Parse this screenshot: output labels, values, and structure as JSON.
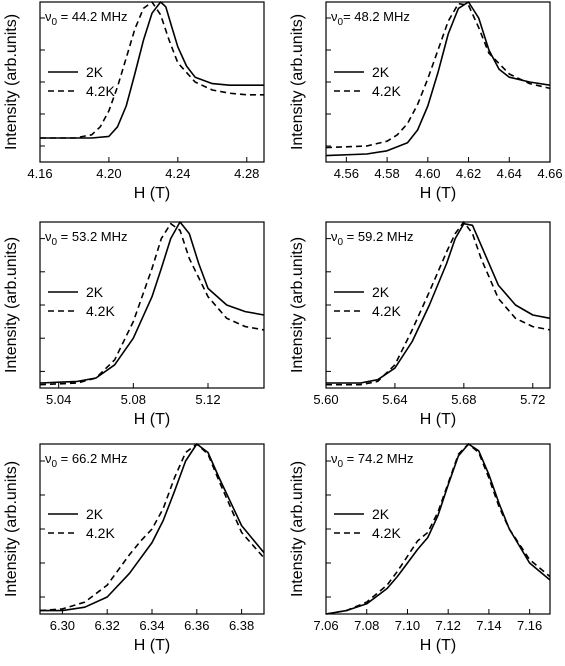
{
  "chart_data": [
    {
      "type": "line",
      "annotation": {
        "prefix": "ν",
        "sub": "0",
        "text": " = 44.2 MHz"
      },
      "xlabel": "H (T)",
      "ylabel": "Intensity (arb.units)",
      "xlim": [
        4.16,
        4.29
      ],
      "ylim": [
        0,
        1.0
      ],
      "xticks": [
        4.16,
        4.2,
        4.24,
        4.28
      ],
      "xtick_labels": [
        "4.16",
        "4.20",
        "4.24",
        "4.28"
      ],
      "yticks": [
        0.1,
        0.3,
        0.5,
        0.7,
        0.9
      ],
      "legend": [
        "2K",
        "4.2K"
      ],
      "series": [
        {
          "name": "2K",
          "style": "solid",
          "x": [
            4.16,
            4.19,
            4.2,
            4.205,
            4.21,
            4.215,
            4.22,
            4.225,
            4.23,
            4.233,
            4.236,
            4.24,
            4.245,
            4.25,
            4.26,
            4.27,
            4.28,
            4.29
          ],
          "y": [
            0.15,
            0.15,
            0.16,
            0.22,
            0.35,
            0.55,
            0.76,
            0.93,
            1.0,
            0.97,
            0.86,
            0.72,
            0.6,
            0.53,
            0.49,
            0.48,
            0.48,
            0.48
          ]
        },
        {
          "name": "4.2K",
          "style": "dashed",
          "x": [
            4.16,
            4.18,
            4.19,
            4.195,
            4.2,
            4.205,
            4.21,
            4.215,
            4.22,
            4.225,
            4.23,
            4.235,
            4.24,
            4.25,
            4.26,
            4.27,
            4.28,
            4.29
          ],
          "y": [
            0.15,
            0.15,
            0.17,
            0.22,
            0.32,
            0.47,
            0.65,
            0.83,
            0.96,
            1.0,
            0.92,
            0.76,
            0.62,
            0.5,
            0.45,
            0.43,
            0.42,
            0.42
          ]
        }
      ]
    },
    {
      "type": "line",
      "annotation": {
        "prefix": "ν",
        "sub": "0",
        "text": "= 48.2 MHz"
      },
      "xlabel": "H (T)",
      "ylabel": "Intensity (arb.units)",
      "xlim": [
        4.55,
        4.66
      ],
      "ylim": [
        0,
        1.0
      ],
      "xticks": [
        4.56,
        4.58,
        4.6,
        4.62,
        4.64,
        4.66
      ],
      "xtick_labels": [
        "4.56",
        "4.58",
        "4.60",
        "4.62",
        "4.64",
        "4.66"
      ],
      "yticks": [
        0.1,
        0.3,
        0.5,
        0.7,
        0.9
      ],
      "legend": [
        "2K",
        "4.2K"
      ],
      "series": [
        {
          "name": "2K",
          "style": "solid",
          "x": [
            4.55,
            4.57,
            4.58,
            4.59,
            4.595,
            4.6,
            4.605,
            4.61,
            4.615,
            4.62,
            4.625,
            4.63,
            4.635,
            4.64,
            4.65,
            4.66
          ],
          "y": [
            0.04,
            0.05,
            0.07,
            0.12,
            0.2,
            0.35,
            0.56,
            0.8,
            0.96,
            1.0,
            0.9,
            0.7,
            0.58,
            0.53,
            0.5,
            0.48
          ]
        },
        {
          "name": "4.2K",
          "style": "dashed",
          "x": [
            4.55,
            4.57,
            4.58,
            4.585,
            4.59,
            4.595,
            4.6,
            4.605,
            4.61,
            4.615,
            4.62,
            4.625,
            4.63,
            4.64,
            4.65,
            4.66
          ],
          "y": [
            0.09,
            0.1,
            0.13,
            0.17,
            0.24,
            0.36,
            0.52,
            0.7,
            0.88,
            0.99,
            0.98,
            0.84,
            0.68,
            0.55,
            0.49,
            0.46
          ]
        }
      ]
    },
    {
      "type": "line",
      "annotation": {
        "prefix": "ν",
        "sub": "0",
        "text": " = 53.2 MHz"
      },
      "xlabel": "H (T)",
      "ylabel": "Intensity (arb.units)",
      "xlim": [
        5.03,
        5.15
      ],
      "ylim": [
        0,
        1.0
      ],
      "xticks": [
        5.04,
        5.08,
        5.12
      ],
      "xtick_labels": [
        "5.04",
        "5.08",
        "5.12"
      ],
      "yticks": [
        0.1,
        0.3,
        0.5,
        0.7,
        0.9
      ],
      "legend": [
        "2K",
        "4.2K"
      ],
      "series": [
        {
          "name": "2K",
          "style": "solid",
          "x": [
            5.03,
            5.05,
            5.06,
            5.07,
            5.08,
            5.09,
            5.095,
            5.1,
            5.105,
            5.11,
            5.115,
            5.12,
            5.13,
            5.14,
            5.15
          ],
          "y": [
            0.03,
            0.04,
            0.06,
            0.14,
            0.3,
            0.55,
            0.72,
            0.9,
            1.0,
            0.93,
            0.75,
            0.6,
            0.5,
            0.46,
            0.44
          ]
        },
        {
          "name": "4.2K",
          "style": "dashed",
          "x": [
            5.03,
            5.05,
            5.06,
            5.07,
            5.08,
            5.09,
            5.095,
            5.1,
            5.105,
            5.11,
            5.12,
            5.13,
            5.14,
            5.15
          ],
          "y": [
            0.02,
            0.03,
            0.06,
            0.17,
            0.4,
            0.72,
            0.9,
            0.99,
            0.95,
            0.78,
            0.55,
            0.42,
            0.37,
            0.35
          ]
        }
      ]
    },
    {
      "type": "line",
      "annotation": {
        "prefix": "ν",
        "sub": "0",
        "text": " = 59.2 MHz"
      },
      "xlabel": "H (T)",
      "ylabel": "Intensity (arb.units)",
      "xlim": [
        5.6,
        5.73
      ],
      "ylim": [
        0,
        1.0
      ],
      "xticks": [
        5.6,
        5.64,
        5.68,
        5.72
      ],
      "xtick_labels": [
        "5.60",
        "5.64",
        "5.68",
        "5.72"
      ],
      "yticks": [
        0.1,
        0.3,
        0.5,
        0.7,
        0.9
      ],
      "legend": [
        "2K",
        "4.2K"
      ],
      "series": [
        {
          "name": "2K",
          "style": "solid",
          "x": [
            5.6,
            5.62,
            5.63,
            5.64,
            5.65,
            5.66,
            5.67,
            5.675,
            5.68,
            5.685,
            5.69,
            5.7,
            5.71,
            5.72,
            5.73
          ],
          "y": [
            0.03,
            0.03,
            0.05,
            0.12,
            0.28,
            0.5,
            0.75,
            0.9,
            0.99,
            0.98,
            0.86,
            0.62,
            0.5,
            0.44,
            0.42
          ]
        },
        {
          "name": "4.2K",
          "style": "dashed",
          "x": [
            5.6,
            5.62,
            5.63,
            5.64,
            5.65,
            5.66,
            5.67,
            5.675,
            5.68,
            5.685,
            5.69,
            5.7,
            5.71,
            5.72,
            5.73
          ],
          "y": [
            0.02,
            0.02,
            0.04,
            0.14,
            0.35,
            0.58,
            0.82,
            0.93,
            1.0,
            0.93,
            0.78,
            0.54,
            0.42,
            0.37,
            0.35
          ]
        }
      ]
    },
    {
      "type": "line",
      "annotation": {
        "prefix": "ν",
        "sub": "0",
        "text": " = 66.2 MHz"
      },
      "xlabel": "H (T)",
      "ylabel": "Intensity (arb.units)",
      "xlim": [
        6.29,
        6.39
      ],
      "ylim": [
        0,
        1.0
      ],
      "xticks": [
        6.3,
        6.32,
        6.34,
        6.36,
        6.38
      ],
      "xtick_labels": [
        "6.30",
        "6.32",
        "6.34",
        "6.36",
        "6.38"
      ],
      "yticks": [
        0.1,
        0.3,
        0.5,
        0.7,
        0.9
      ],
      "legend": [
        "2K",
        "4.2K"
      ],
      "series": [
        {
          "name": "2K",
          "style": "solid",
          "x": [
            6.29,
            6.3,
            6.31,
            6.32,
            6.33,
            6.34,
            6.345,
            6.35,
            6.355,
            6.36,
            6.365,
            6.37,
            6.38,
            6.39
          ],
          "y": [
            0.02,
            0.02,
            0.04,
            0.1,
            0.24,
            0.42,
            0.55,
            0.72,
            0.9,
            1.0,
            0.95,
            0.8,
            0.52,
            0.36
          ]
        },
        {
          "name": "4.2K",
          "style": "dashed",
          "x": [
            6.29,
            6.3,
            6.31,
            6.32,
            6.33,
            6.335,
            6.34,
            6.345,
            6.35,
            6.355,
            6.36,
            6.365,
            6.37,
            6.38,
            6.39
          ],
          "y": [
            0.02,
            0.03,
            0.07,
            0.17,
            0.35,
            0.43,
            0.5,
            0.62,
            0.8,
            0.95,
            1.0,
            0.94,
            0.78,
            0.48,
            0.33
          ]
        }
      ]
    },
    {
      "type": "line",
      "annotation": {
        "prefix": "ν",
        "sub": "0",
        "text": " = 74.2 MHz"
      },
      "xlabel": "H (T)",
      "ylabel": "Intensity (arb.units)",
      "xlim": [
        7.06,
        7.17
      ],
      "ylim": [
        0,
        1.0
      ],
      "xticks": [
        7.06,
        7.08,
        7.1,
        7.12,
        7.14,
        7.16
      ],
      "xtick_labels": [
        "7.06",
        "7.08",
        "7.10",
        "7.12",
        "7.14",
        "7.16"
      ],
      "yticks": [
        0.1,
        0.3,
        0.5,
        0.7,
        0.9
      ],
      "legend": [
        "2K",
        "4.2K"
      ],
      "series": [
        {
          "name": "2K",
          "style": "solid",
          "x": [
            7.06,
            7.07,
            7.08,
            7.09,
            7.095,
            7.1,
            7.105,
            7.11,
            7.115,
            7.12,
            7.125,
            7.13,
            7.135,
            7.14,
            7.145,
            7.15,
            7.16,
            7.17
          ],
          "y": [
            0.0,
            0.02,
            0.06,
            0.15,
            0.22,
            0.3,
            0.38,
            0.45,
            0.58,
            0.76,
            0.93,
            1.0,
            0.96,
            0.82,
            0.65,
            0.5,
            0.3,
            0.2
          ]
        },
        {
          "name": "4.2K",
          "style": "dashed",
          "x": [
            7.06,
            7.07,
            7.08,
            7.09,
            7.095,
            7.1,
            7.105,
            7.11,
            7.115,
            7.12,
            7.125,
            7.13,
            7.135,
            7.14,
            7.145,
            7.15,
            7.16,
            7.17
          ],
          "y": [
            0.0,
            0.02,
            0.07,
            0.17,
            0.25,
            0.34,
            0.43,
            0.48,
            0.6,
            0.77,
            0.94,
            1.0,
            0.95,
            0.8,
            0.63,
            0.5,
            0.32,
            0.22
          ]
        }
      ]
    }
  ]
}
